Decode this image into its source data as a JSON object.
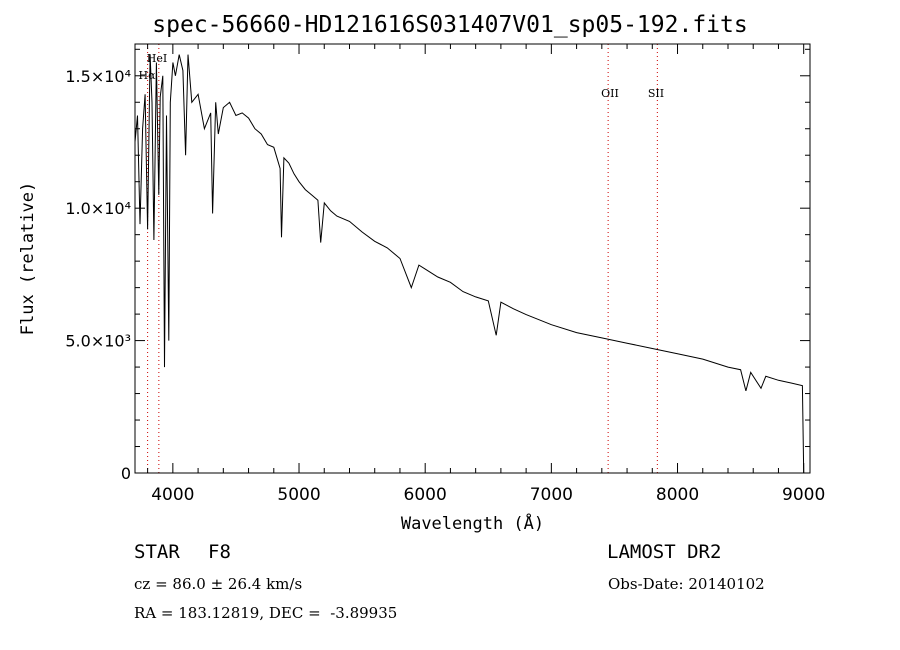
{
  "chart_data": {
    "type": "line",
    "title": "spec-56660-HD121616S031407V01_sp05-192.fits",
    "xlabel": "Wavelength (Å)",
    "ylabel": "Flux (relative)",
    "xlim": [
      3700,
      9050
    ],
    "ylim": [
      0,
      16200
    ],
    "x_ticks": [
      4000,
      5000,
      6000,
      7000,
      8000,
      9000
    ],
    "x_tick_labels": [
      "4000",
      "5000",
      "6000",
      "7000",
      "8000",
      "9000"
    ],
    "y_ticks": [
      0,
      5000,
      10000,
      15000
    ],
    "y_tick_labels": [
      "0",
      "5.0×10³",
      "1.0×10⁴",
      "1.5×10⁴"
    ],
    "series": [
      {
        "name": "flux",
        "x": [
          3700,
          3720,
          3740,
          3760,
          3780,
          3800,
          3820,
          3835,
          3850,
          3870,
          3889,
          3900,
          3920,
          3934,
          3950,
          3968,
          3980,
          4000,
          4020,
          4050,
          4080,
          4101,
          4120,
          4150,
          4200,
          4250,
          4300,
          4315,
          4340,
          4360,
          4400,
          4450,
          4500,
          4550,
          4600,
          4650,
          4700,
          4750,
          4800,
          4850,
          4861,
          4880,
          4920,
          4960,
          5000,
          5050,
          5100,
          5150,
          5172,
          5200,
          5250,
          5300,
          5400,
          5500,
          5600,
          5700,
          5800,
          5890,
          5950,
          6000,
          6100,
          6200,
          6300,
          6400,
          6500,
          6563,
          6600,
          6700,
          6800,
          7000,
          7200,
          7400,
          7600,
          7800,
          8000,
          8200,
          8400,
          8500,
          8542,
          8580,
          8662,
          8700,
          8800,
          8900,
          8990,
          9000
        ],
        "y": [
          12500,
          13500,
          9400,
          13000,
          14300,
          9200,
          15800,
          14000,
          8800,
          15500,
          10500,
          14200,
          15000,
          4000,
          13500,
          5000,
          14000,
          15500,
          15000,
          15800,
          15200,
          12000,
          15800,
          14000,
          14300,
          13000,
          13600,
          9800,
          14000,
          12800,
          13800,
          14000,
          13500,
          13600,
          13400,
          13000,
          12800,
          12400,
          12300,
          11500,
          8900,
          11900,
          11700,
          11300,
          11000,
          10700,
          10500,
          10300,
          8700,
          10200,
          9900,
          9700,
          9500,
          9100,
          8750,
          8500,
          8100,
          7000,
          7850,
          7700,
          7400,
          7200,
          6850,
          6650,
          6500,
          5200,
          6450,
          6200,
          5980,
          5600,
          5300,
          5100,
          4900,
          4700,
          4500,
          4300,
          4000,
          3900,
          3100,
          3800,
          3200,
          3650,
          3500,
          3400,
          3300,
          0
        ]
      }
    ],
    "annotations": [
      {
        "label": "OII",
        "wavelength": 7450,
        "line": "dotted",
        "color": "#cc0000"
      },
      {
        "label": "SII",
        "wavelength": 7840,
        "line": "dotted",
        "color": "#cc0000"
      },
      {
        "label": "HeI",
        "wavelength": 3889,
        "line": "dotted",
        "color": "#cc0000"
      },
      {
        "label": "Hα",
        "wavelength": 3800,
        "line": "dotted",
        "color": "#cc0000"
      }
    ]
  },
  "info": {
    "class_label": "STAR",
    "subclass": "F8",
    "survey": "LAMOST DR2",
    "redshift": "cz = 86.0 ± 26.4 km/s",
    "obs_date": "Obs-Date: 20140102",
    "coords": "RA = 183.12819, DEC =  -3.89935"
  },
  "colors": {
    "axis": "#000000",
    "line": "#000000",
    "marker": "#cc0000"
  }
}
